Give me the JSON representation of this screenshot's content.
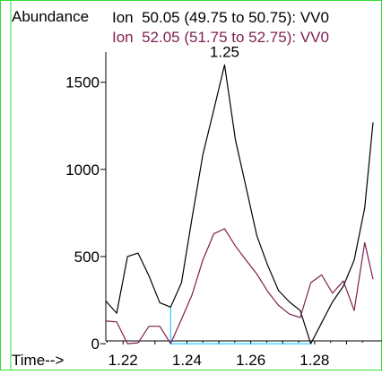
{
  "chart_data": {
    "type": "line",
    "ylabel": "Abundance",
    "xlabel": "Time-->",
    "xlim": [
      1.2146,
      1.2983
    ],
    "ylim": [
      -20,
      1900
    ],
    "x_ticks": [
      1.22,
      1.24,
      1.26,
      1.28
    ],
    "x_tick_labels": [
      "1.22",
      "1.24",
      "1.26",
      "1.28"
    ],
    "y_ticks": [
      0,
      500,
      1000,
      1500
    ],
    "y_tick_labels": [
      "0",
      "500",
      "1000",
      "1500"
    ],
    "series": [
      {
        "name": "Ion  50.05 (49.75 to 50.75): VV0",
        "color": "#000000",
        "x": [
          1.2146,
          1.218,
          1.2214,
          1.2247,
          1.2281,
          1.2315,
          1.2349,
          1.2383,
          1.2416,
          1.245,
          1.2484,
          1.2518,
          1.2552,
          1.2585,
          1.2619,
          1.2653,
          1.2687,
          1.2721,
          1.2755,
          1.2788,
          1.2822,
          1.2856,
          1.289,
          1.2924,
          1.2957,
          1.2983
        ],
        "values": [
          245,
          175,
          500,
          520,
          390,
          235,
          210,
          350,
          720,
          1085,
          1340,
          1600,
          1170,
          900,
          620,
          450,
          305,
          240,
          190,
          0,
          120,
          240,
          330,
          480,
          780,
          1270
        ]
      },
      {
        "name": "Ion  52.05 (51.75 to 52.75): VV0",
        "color": "#7f1f4f",
        "x": [
          1.2146,
          1.218,
          1.2214,
          1.2247,
          1.2281,
          1.2315,
          1.2349,
          1.2383,
          1.2416,
          1.245,
          1.2484,
          1.2518,
          1.2552,
          1.2585,
          1.2619,
          1.2653,
          1.2687,
          1.2721,
          1.2755,
          1.2788,
          1.2822,
          1.2856,
          1.289,
          1.2924,
          1.2957,
          1.2983
        ],
        "values": [
          130,
          125,
          0,
          5,
          100,
          100,
          0,
          140,
          280,
          480,
          630,
          660,
          560,
          480,
          400,
          300,
          220,
          170,
          150,
          350,
          395,
          290,
          360,
          190,
          580,
          370
        ]
      }
    ],
    "peak_label": {
      "text": "1.25",
      "x": 1.2518,
      "y": 1600
    },
    "baseline": {
      "color": "#00c0ff",
      "x": [
        1.2349,
        1.2349,
        1.279
      ],
      "values": [
        210,
        0,
        0
      ]
    },
    "legend_placement": "top"
  },
  "colors": {
    "frame": "#33dd33",
    "axis": "#000000"
  }
}
